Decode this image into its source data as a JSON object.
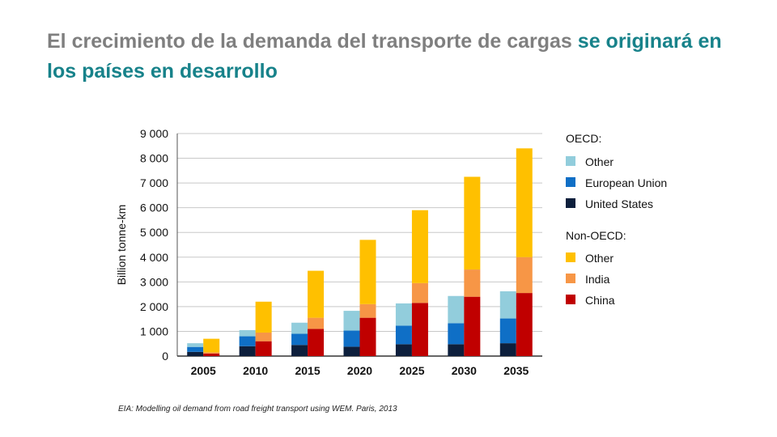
{
  "slide": {
    "title_main": "El crecimiento de la demanda del transporte de cargas ",
    "title_accent": "se originará en los países en desarrollo",
    "source": "EIA: Modelling oil demand from road freight transport using WEM. Paris, 2013"
  },
  "colors": {
    "oecd_other": "#92cddc",
    "oecd_eu": "#0f6fc6",
    "oecd_us": "#0d1f3c",
    "nonoecd_other": "#ffc000",
    "nonoecd_india": "#f79646",
    "nonoecd_china": "#c00000"
  },
  "chart_data": {
    "type": "bar",
    "stacked": true,
    "ylabel": "Billion tonne-km",
    "ylim": [
      0,
      9000
    ],
    "yticks": [
      "0",
      "1 000",
      "2 000",
      "3 000",
      "4 000",
      "5 000",
      "6 000",
      "7 000",
      "8 000",
      "9 000"
    ],
    "categories": [
      "2005",
      "2010",
      "2015",
      "2020",
      "2025",
      "2030",
      "2035"
    ],
    "grid": true,
    "legend_position": "right",
    "legend_groups": [
      "OECD:",
      "Non-OECD:"
    ],
    "series": [
      {
        "name": "Other",
        "group": "OECD",
        "color_key": "oecd_other",
        "values": [
          150,
          250,
          450,
          800,
          900,
          1100,
          1100
        ]
      },
      {
        "name": "European Union",
        "group": "OECD",
        "color_key": "oecd_eu",
        "values": [
          200,
          400,
          450,
          650,
          750,
          850,
          1000
        ]
      },
      {
        "name": "United States",
        "group": "OECD",
        "color_key": "oecd_us",
        "values": [
          170,
          400,
          450,
          380,
          480,
          480,
          520
        ]
      },
      {
        "name": "Other",
        "group": "Non-OECD",
        "color_key": "nonoecd_other",
        "values": [
          550,
          1250,
          1900,
          2600,
          2950,
          3750,
          4400
        ]
      },
      {
        "name": "India",
        "group": "Non-OECD",
        "color_key": "nonoecd_india",
        "values": [
          50,
          350,
          450,
          550,
          800,
          1100,
          1450
        ]
      },
      {
        "name": "China",
        "group": "Non-OECD",
        "color_key": "nonoecd_china",
        "values": [
          100,
          600,
          1100,
          1550,
          2150,
          2400,
          2550
        ]
      }
    ]
  }
}
